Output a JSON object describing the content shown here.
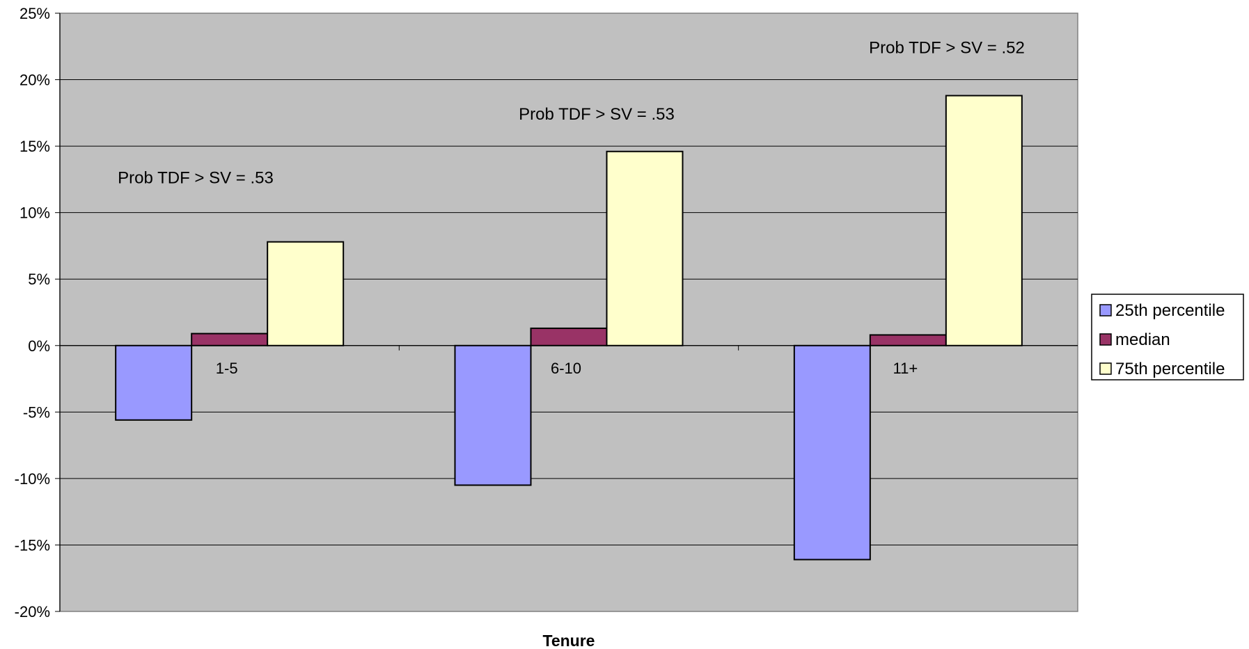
{
  "chart_data": {
    "type": "bar",
    "title": "",
    "xlabel": "Tenure",
    "ylabel": "",
    "categories": [
      "1-5",
      "6-10",
      "11+"
    ],
    "series": [
      {
        "name": "25th percentile",
        "color": "#9999ff",
        "values": [
          -5.6,
          -10.5,
          -16.1
        ]
      },
      {
        "name": "median",
        "color": "#993366",
        "values": [
          0.9,
          1.3,
          0.8
        ]
      },
      {
        "name": "75th percentile",
        "color": "#ffffcc",
        "values": [
          7.8,
          14.6,
          18.8
        ]
      }
    ],
    "ylim": [
      -20,
      25
    ],
    "y_ticks": [
      25,
      20,
      15,
      10,
      5,
      0,
      -5,
      -10,
      -15,
      -20
    ],
    "y_tick_labels": [
      "25%",
      "20%",
      "15%",
      "10%",
      "5%",
      "0%",
      "-5%",
      "-10%",
      "-15%",
      "-20%"
    ],
    "annotations": [
      "Prob TDF > SV = .53",
      "Prob TDF > SV = .53",
      "Prob TDF > SV = .52"
    ],
    "plot_background": "#c0c0c0",
    "grid": true,
    "legend_position": "right"
  }
}
